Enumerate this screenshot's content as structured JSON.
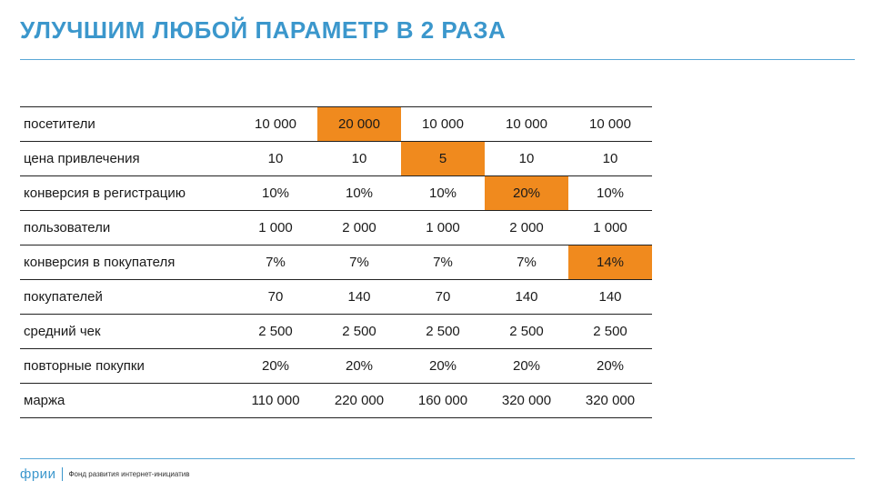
{
  "title": "УЛУЧШИМ ЛЮБОЙ ПАРАМЕТР В 2 РАЗА",
  "table": {
    "rows": [
      {
        "label": "посетители",
        "values": [
          "10 000",
          "20 000",
          "10 000",
          "10 000",
          "10 000"
        ],
        "highlight": 1
      },
      {
        "label": "цена привлечения",
        "values": [
          "10",
          "10",
          "5",
          "10",
          "10"
        ],
        "highlight": 2
      },
      {
        "label": "конверсия в регистрацию",
        "values": [
          "10%",
          "10%",
          "10%",
          "20%",
          "10%"
        ],
        "highlight": 3
      },
      {
        "label": "пользователи",
        "values": [
          "1 000",
          "2 000",
          "1 000",
          "2 000",
          "1 000"
        ],
        "highlight": null
      },
      {
        "label": "конверсия в покупателя",
        "values": [
          "7%",
          "7%",
          "7%",
          "7%",
          "14%"
        ],
        "highlight": 4
      },
      {
        "label": "покупателей",
        "values": [
          "70",
          "140",
          "70",
          "140",
          "140"
        ],
        "highlight": null
      },
      {
        "label": "средний чек",
        "values": [
          "2 500",
          "2 500",
          "2 500",
          "2 500",
          "2 500"
        ],
        "highlight": null
      },
      {
        "label": "повторные покупки",
        "values": [
          "20%",
          "20%",
          "20%",
          "20%",
          "20%"
        ],
        "highlight": null
      },
      {
        "label": "маржа",
        "values": [
          "110 000",
          "220 000",
          "160 000",
          "320 000",
          "320 000"
        ],
        "highlight": null
      }
    ]
  },
  "footer": {
    "logo": "фрии",
    "tagline": "Фонд развития интернет-инициатив"
  },
  "colors": {
    "accent": "#3b97cc",
    "highlight": "#f08a1e",
    "text": "#1a1a1a"
  }
}
